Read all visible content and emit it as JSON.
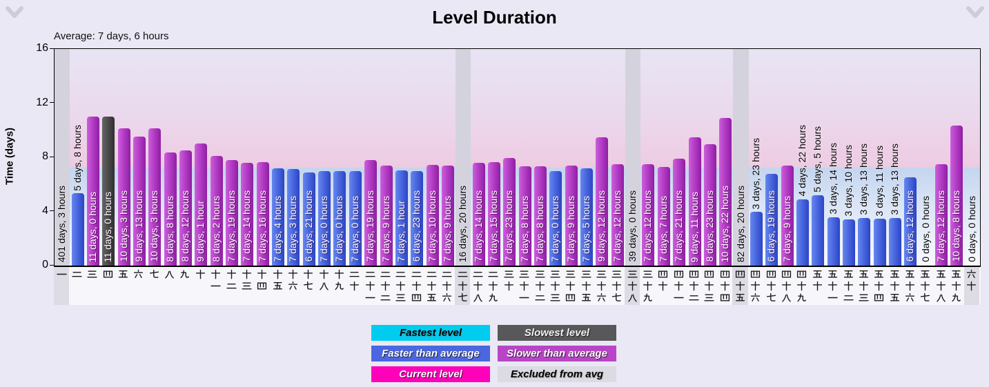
{
  "header": {
    "title": "Level Duration",
    "average_label": "Average: 7 days, 6 hours"
  },
  "y_axis": {
    "label": "Time (days)",
    "ticks": [
      0,
      4,
      8,
      12,
      16
    ],
    "max": 16
  },
  "legend": [
    {
      "label": "Fastest level",
      "color": "#00ccf0",
      "text_color": "#000000",
      "shadow": "light"
    },
    {
      "label": "Slowest level",
      "color": "#58585a",
      "text_color": "#f2f2f2",
      "shadow": "dark"
    },
    {
      "label": "Faster than average",
      "color": "#4a67df",
      "text_color": "#ffffff",
      "shadow": "dark"
    },
    {
      "label": "Slower than average",
      "color": "#b845c6",
      "text_color": "#ffffff",
      "shadow": "dark"
    },
    {
      "label": "Current level",
      "color": "#ff00bb",
      "text_color": "#ffffff",
      "shadow": "dark"
    },
    {
      "label": "Excluded from avg",
      "color": "#dcdbe3",
      "text_color": "#000000",
      "shadow": "light"
    }
  ],
  "status_colors": {
    "faster_gradient": [
      "#6687ef",
      "#4764dd",
      "#2c45c4"
    ],
    "slower_gradient": [
      "#cc5fdb",
      "#b13ac3",
      "#8f1fa3"
    ],
    "slowest_gradient": [
      "#646464",
      "#4a4a4a",
      "#2e2e2e"
    ],
    "excluded_fill": "#d4d2dd"
  },
  "chart_data": {
    "type": "bar",
    "title": "Level Duration",
    "ylabel": "Time (days)",
    "ylim": [
      0,
      16
    ],
    "yticks": [
      0,
      4,
      8,
      12,
      16
    ],
    "average_days": 7.25,
    "average_text": "7 days, 6 hours",
    "legend_position": "bottom",
    "levels": [
      {
        "level": 1,
        "cjk": "一",
        "duration": "401 days, 3 hours",
        "days": 401.125,
        "status": "excluded"
      },
      {
        "level": 2,
        "cjk": "二",
        "duration": "5 days, 8 hours",
        "days": 5.333,
        "status": "faster"
      },
      {
        "level": 3,
        "cjk": "三",
        "duration": "11 days, 0 hours",
        "days": 11.0,
        "status": "slower"
      },
      {
        "level": 4,
        "cjk": "四",
        "duration": "11 days, 0 hours",
        "days": 11.0,
        "status": "slowest"
      },
      {
        "level": 5,
        "cjk": "五",
        "duration": "10 days, 3 hours",
        "days": 10.125,
        "status": "slower"
      },
      {
        "level": 6,
        "cjk": "六",
        "duration": "9 days, 13 hours",
        "days": 9.542,
        "status": "slower"
      },
      {
        "level": 7,
        "cjk": "七",
        "duration": "10 days, 3 hours",
        "days": 10.125,
        "status": "slower"
      },
      {
        "level": 8,
        "cjk": "八",
        "duration": "8 days, 8 hours",
        "days": 8.333,
        "status": "slower"
      },
      {
        "level": 9,
        "cjk": "九",
        "duration": "8 days, 12 hours",
        "days": 8.5,
        "status": "slower"
      },
      {
        "level": 10,
        "cjk": "十",
        "duration": "9 days, 1 hour",
        "days": 9.042,
        "status": "slower"
      },
      {
        "level": 11,
        "cjk": "十一",
        "duration": "8 days, 2 hours",
        "days": 8.083,
        "status": "slower"
      },
      {
        "level": 12,
        "cjk": "十二",
        "duration": "7 days, 19 hours",
        "days": 7.792,
        "status": "slower"
      },
      {
        "level": 13,
        "cjk": "十三",
        "duration": "7 days, 14 hours",
        "days": 7.583,
        "status": "slower"
      },
      {
        "level": 14,
        "cjk": "十四",
        "duration": "7 days, 16 hours",
        "days": 7.667,
        "status": "slower"
      },
      {
        "level": 15,
        "cjk": "十五",
        "duration": "7 days, 4 hours",
        "days": 7.167,
        "status": "faster"
      },
      {
        "level": 16,
        "cjk": "十六",
        "duration": "7 days, 3 hours",
        "days": 7.125,
        "status": "faster"
      },
      {
        "level": 17,
        "cjk": "十七",
        "duration": "6 days, 21 hours",
        "days": 6.875,
        "status": "faster"
      },
      {
        "level": 18,
        "cjk": "十八",
        "duration": "7 days, 0 hours",
        "days": 7.0,
        "status": "faster"
      },
      {
        "level": 19,
        "cjk": "十九",
        "duration": "7 days, 0 hours",
        "days": 7.0,
        "status": "faster"
      },
      {
        "level": 20,
        "cjk": "二十",
        "duration": "7 days, 0 hours",
        "days": 7.0,
        "status": "faster"
      },
      {
        "level": 21,
        "cjk": "二十一",
        "duration": "7 days, 19 hours",
        "days": 7.792,
        "status": "slower"
      },
      {
        "level": 22,
        "cjk": "二十二",
        "duration": "7 days, 9 hours",
        "days": 7.375,
        "status": "slower"
      },
      {
        "level": 23,
        "cjk": "二十三",
        "duration": "7 days, 1 hour",
        "days": 7.042,
        "status": "faster"
      },
      {
        "level": 24,
        "cjk": "二十四",
        "duration": "6 days, 23 hours",
        "days": 6.958,
        "status": "faster"
      },
      {
        "level": 25,
        "cjk": "二十五",
        "duration": "7 days, 10 hours",
        "days": 7.417,
        "status": "slower"
      },
      {
        "level": 26,
        "cjk": "二十六",
        "duration": "7 days, 9 hours",
        "days": 7.375,
        "status": "slower"
      },
      {
        "level": 27,
        "cjk": "二十七",
        "duration": "16 days, 20 hours",
        "days": 16.833,
        "status": "excluded"
      },
      {
        "level": 28,
        "cjk": "二十八",
        "duration": "7 days, 14 hours",
        "days": 7.583,
        "status": "slower"
      },
      {
        "level": 29,
        "cjk": "二十九",
        "duration": "7 days, 15 hours",
        "days": 7.625,
        "status": "slower"
      },
      {
        "level": 30,
        "cjk": "三十",
        "duration": "7 days, 23 hours",
        "days": 7.958,
        "status": "slower"
      },
      {
        "level": 31,
        "cjk": "三十一",
        "duration": "7 days, 8 hours",
        "days": 7.333,
        "status": "slower"
      },
      {
        "level": 32,
        "cjk": "三十二",
        "duration": "7 days, 8 hours",
        "days": 7.333,
        "status": "slower"
      },
      {
        "level": 33,
        "cjk": "三十三",
        "duration": "7 days, 0 hours",
        "days": 7.0,
        "status": "faster"
      },
      {
        "level": 34,
        "cjk": "三十四",
        "duration": "7 days, 9 hours",
        "days": 7.375,
        "status": "slower"
      },
      {
        "level": 35,
        "cjk": "三十五",
        "duration": "7 days, 5 hours",
        "days": 7.208,
        "status": "faster"
      },
      {
        "level": 36,
        "cjk": "三十六",
        "duration": "9 days, 12 hours",
        "days": 9.5,
        "status": "slower"
      },
      {
        "level": 37,
        "cjk": "三十七",
        "duration": "7 days, 12 hours",
        "days": 7.5,
        "status": "slower"
      },
      {
        "level": 38,
        "cjk": "三十八",
        "duration": "39 days, 0 hours",
        "days": 39.0,
        "status": "excluded"
      },
      {
        "level": 39,
        "cjk": "三十九",
        "duration": "7 days, 12 hours",
        "days": 7.5,
        "status": "slower"
      },
      {
        "level": 40,
        "cjk": "四十",
        "duration": "7 days, 7 hours",
        "days": 7.292,
        "status": "slower"
      },
      {
        "level": 41,
        "cjk": "四十一",
        "duration": "7 days, 21 hours",
        "days": 7.875,
        "status": "slower"
      },
      {
        "level": 42,
        "cjk": "四十二",
        "duration": "9 days, 11 hours",
        "days": 9.458,
        "status": "slower"
      },
      {
        "level": 43,
        "cjk": "四十三",
        "duration": "8 days, 23 hours",
        "days": 8.958,
        "status": "slower"
      },
      {
        "level": 44,
        "cjk": "四十四",
        "duration": "10 days, 22 hours",
        "days": 10.917,
        "status": "slower"
      },
      {
        "level": 45,
        "cjk": "四十五",
        "duration": "82 days, 20 hours",
        "days": 82.833,
        "status": "excluded"
      },
      {
        "level": 46,
        "cjk": "四十六",
        "duration": "3 days, 23 hours",
        "days": 3.958,
        "status": "faster"
      },
      {
        "level": 47,
        "cjk": "四十七",
        "duration": "6 days, 19 hours",
        "days": 6.792,
        "status": "faster"
      },
      {
        "level": 48,
        "cjk": "四十八",
        "duration": "7 days, 9 hours",
        "days": 7.375,
        "status": "slower"
      },
      {
        "level": 49,
        "cjk": "四十九",
        "duration": "4 days, 22 hours",
        "days": 4.917,
        "status": "faster"
      },
      {
        "level": 50,
        "cjk": "五十",
        "duration": "5 days, 5 hours",
        "days": 5.208,
        "status": "faster"
      },
      {
        "level": 51,
        "cjk": "五十一",
        "duration": "3 days, 14 hours",
        "days": 3.583,
        "status": "faster"
      },
      {
        "level": 52,
        "cjk": "五十二",
        "duration": "3 days, 10 hours",
        "days": 3.417,
        "status": "faster"
      },
      {
        "level": 53,
        "cjk": "五十三",
        "duration": "3 days, 13 hours",
        "days": 3.542,
        "status": "faster"
      },
      {
        "level": 54,
        "cjk": "五十四",
        "duration": "3 days, 11 hours",
        "days": 3.458,
        "status": "faster"
      },
      {
        "level": 55,
        "cjk": "五十五",
        "duration": "3 days, 13 hours",
        "days": 3.542,
        "status": "faster"
      },
      {
        "level": 56,
        "cjk": "五十六",
        "duration": "6 days, 12 hours",
        "days": 6.5,
        "status": "faster"
      },
      {
        "level": 57,
        "cjk": "五十七",
        "duration": "0 days, 0 hours",
        "days": 0,
        "status": "zero"
      },
      {
        "level": 58,
        "cjk": "五十八",
        "duration": "7 days, 12 hours",
        "days": 7.5,
        "status": "slower"
      },
      {
        "level": 59,
        "cjk": "五十九",
        "duration": "10 days, 8 hours",
        "days": 10.333,
        "status": "slower"
      },
      {
        "level": 60,
        "cjk": "六十",
        "duration": "0 days, 0 hours",
        "days": 0,
        "status": "excluded"
      }
    ]
  }
}
